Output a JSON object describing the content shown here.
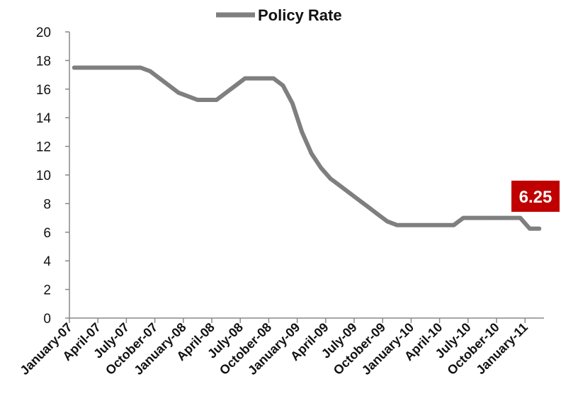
{
  "chart_data": {
    "type": "line",
    "title": "",
    "xlabel": "",
    "ylabel": "",
    "ylim": [
      0,
      20
    ],
    "y_ticks": [
      0,
      2,
      4,
      6,
      8,
      10,
      12,
      14,
      16,
      18,
      20
    ],
    "grid": false,
    "legend_position": "top-center",
    "x_tick_labels": [
      "January-07",
      "April-07",
      "July-07",
      "October-07",
      "January-08",
      "April-08",
      "July-08",
      "October-08",
      "January-09",
      "April-09",
      "July-09",
      "October-09",
      "January-10",
      "April-10",
      "July-10",
      "October-10",
      "January-11"
    ],
    "x": [
      "Jan-07",
      "Feb-07",
      "Mar-07",
      "Apr-07",
      "May-07",
      "Jun-07",
      "Jul-07",
      "Aug-07",
      "Sep-07",
      "Oct-07",
      "Nov-07",
      "Dec-07",
      "Jan-08",
      "Feb-08",
      "Mar-08",
      "Apr-08",
      "May-08",
      "Jun-08",
      "Jul-08",
      "Aug-08",
      "Sep-08",
      "Oct-08",
      "Nov-08",
      "Dec-08",
      "Jan-09",
      "Feb-09",
      "Mar-09",
      "Apr-09",
      "May-09",
      "Jun-09",
      "Jul-09",
      "Aug-09",
      "Sep-09",
      "Oct-09",
      "Nov-09",
      "Dec-09",
      "Jan-10",
      "Feb-10",
      "Mar-10",
      "Apr-10",
      "May-10",
      "Jun-10",
      "Jul-10",
      "Aug-10",
      "Sep-10",
      "Oct-10",
      "Nov-10",
      "Dec-10",
      "Jan-11",
      "Feb-11"
    ],
    "series": [
      {
        "name": "Policy Rate",
        "color": "#7f7f7f",
        "values": [
          17.5,
          17.5,
          17.5,
          17.5,
          17.5,
          17.5,
          17.5,
          17.5,
          17.25,
          16.75,
          16.25,
          15.75,
          15.5,
          15.25,
          15.25,
          15.25,
          15.75,
          16.25,
          16.75,
          16.75,
          16.75,
          16.75,
          16.25,
          15.0,
          13.0,
          11.5,
          10.5,
          9.75,
          9.25,
          8.75,
          8.25,
          7.75,
          7.25,
          6.75,
          6.5,
          6.5,
          6.5,
          6.5,
          6.5,
          6.5,
          6.5,
          7.0,
          7.0,
          7.0,
          7.0,
          7.0,
          7.0,
          7.0,
          6.25,
          6.25
        ]
      }
    ],
    "annotation": {
      "text": "6.25",
      "color": "#c00000"
    }
  }
}
